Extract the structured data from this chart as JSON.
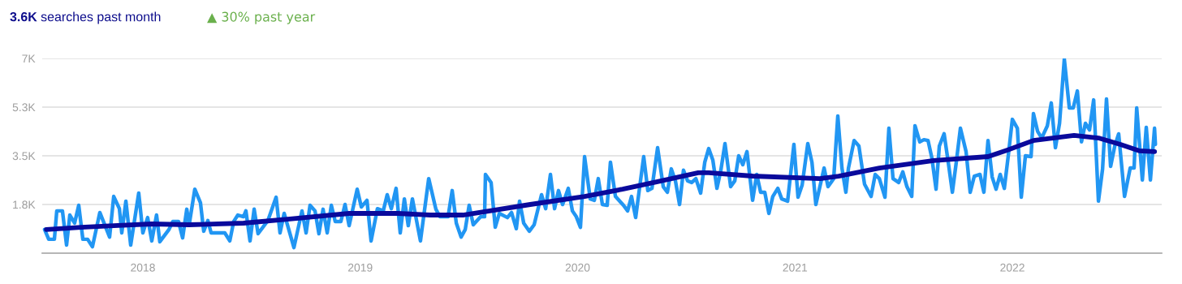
{
  "chart_data": {
    "type": "line",
    "title": "3.6K searches past month",
    "subtitle": "▲ 30% past year",
    "xlim": [
      2017.537,
      2022.687
    ],
    "xticks": [
      2018,
      2019,
      2020,
      2021,
      2022
    ],
    "ylim": [
      0,
      7000
    ],
    "yticks": [
      {
        "value": 1750,
        "label": "1.8K"
      },
      {
        "value": 3500,
        "label": "3.5K"
      },
      {
        "value": 5250,
        "label": "5.3K"
      },
      {
        "value": 7000,
        "label": "7K"
      }
    ],
    "grid": "y",
    "legend": false,
    "marker": "none",
    "line_style": "solid",
    "series": [
      {
        "color": "#2196f3",
        "x": [
          2017.548,
          2017.567,
          2017.593,
          2017.604,
          2017.63,
          2017.649,
          2017.664,
          2017.686,
          2017.705,
          2017.724,
          2017.746,
          2017.768,
          2017.802,
          2017.847,
          2017.866,
          2017.892,
          2017.903,
          2017.922,
          2017.944,
          2017.981,
          2018.0,
          2018.022,
          2018.041,
          2018.063,
          2018.078,
          2018.12,
          2018.138,
          2018.164,
          2018.183,
          2018.202,
          2018.213,
          2018.239,
          2018.265,
          2018.28,
          2018.299,
          2018.314,
          2018.377,
          2018.4,
          2018.418,
          2018.437,
          2018.463,
          2018.474,
          2018.493,
          2018.512,
          2018.53,
          2018.575,
          2018.613,
          2018.631,
          2018.65,
          2018.695,
          2018.732,
          2018.751,
          2018.769,
          2018.792,
          2018.81,
          2018.829,
          2018.848,
          2018.867,
          2018.885,
          2018.911,
          2018.93,
          2018.949,
          2018.986,
          2019.005,
          2019.031,
          2019.05,
          2019.079,
          2019.106,
          2019.124,
          2019.143,
          2019.165,
          2019.184,
          2019.203,
          2019.221,
          2019.24,
          2019.277,
          2019.315,
          2019.348,
          2019.367,
          2019.404,
          2019.423,
          2019.442,
          2019.464,
          2019.483,
          2019.501,
          2019.52,
          2019.554,
          2019.572,
          2019.576,
          2019.602,
          2019.621,
          2019.64,
          2019.677,
          2019.696,
          2019.718,
          2019.733,
          2019.752,
          2019.778,
          2019.8,
          2019.834,
          2019.853,
          2019.875,
          2019.894,
          2019.912,
          2019.931,
          2019.957,
          2019.976,
          2019.994,
          2020.013,
          2020.032,
          2020.058,
          2020.077,
          2020.095,
          2020.114,
          2020.136,
          2020.151,
          2020.174,
          2020.211,
          2020.23,
          2020.248,
          2020.267,
          2020.304,
          2020.323,
          2020.342,
          2020.368,
          2020.394,
          2020.413,
          2020.431,
          2020.45,
          2020.469,
          2020.487,
          2020.506,
          2020.525,
          2020.544,
          2020.566,
          2020.585,
          2020.603,
          2020.622,
          2020.641,
          2020.659,
          2020.678,
          2020.704,
          2020.723,
          2020.741,
          2020.76,
          2020.779,
          2020.805,
          2020.824,
          2020.842,
          2020.861,
          2020.88,
          2020.898,
          2020.921,
          2020.939,
          2020.966,
          2020.995,
          2021.014,
          2021.033,
          2021.059,
          2021.078,
          2021.096,
          2021.134,
          2021.152,
          2021.178,
          2021.197,
          2021.216,
          2021.234,
          2021.246,
          2021.272,
          2021.294,
          2021.32,
          2021.35,
          2021.369,
          2021.388,
          2021.414,
          2021.432,
          2021.451,
          2021.477,
          2021.496,
          2021.515,
          2021.537,
          2021.552,
          2021.574,
          2021.593,
          2021.612,
          2021.63,
          2021.649,
          2021.664,
          2021.686,
          2021.705,
          2021.724,
          2021.742,
          2021.761,
          2021.787,
          2021.806,
          2021.825,
          2021.851,
          2021.869,
          2021.888,
          2021.907,
          2021.925,
          2021.944,
          2021.963,
          2021.982,
          2022.0,
          2022.023,
          2022.041,
          2022.06,
          2022.086,
          2022.097,
          2022.116,
          2022.135,
          2022.161,
          2022.179,
          2022.198,
          2022.217,
          2022.239,
          2022.262,
          2022.28,
          2022.299,
          2022.318,
          2022.336,
          2022.355,
          2022.374,
          2022.396,
          2022.415,
          2022.433,
          2022.452,
          2022.471,
          2022.489,
          2022.516,
          2022.542,
          2022.56,
          2022.572,
          2022.598,
          2022.616,
          2022.635,
          2022.654,
          2022.658
        ],
        "values": [
          850,
          500,
          500,
          1520,
          1520,
          290,
          1370,
          1080,
          1720,
          500,
          500,
          230,
          1460,
          580,
          2040,
          1600,
          730,
          1870,
          290,
          2160,
          730,
          1280,
          440,
          1370,
          410,
          850,
          1140,
          1140,
          550,
          1580,
          1020,
          2300,
          1810,
          790,
          1170,
          730,
          730,
          440,
          1140,
          1370,
          1310,
          1520,
          440,
          1580,
          700,
          1170,
          2010,
          730,
          1430,
          200,
          1520,
          730,
          1720,
          1520,
          700,
          1580,
          730,
          1720,
          1140,
          1140,
          1750,
          990,
          2300,
          1660,
          1900,
          440,
          1600,
          1520,
          2100,
          1600,
          2330,
          730,
          1950,
          990,
          1950,
          440,
          2680,
          1580,
          1310,
          1310,
          2250,
          1080,
          580,
          850,
          1720,
          1020,
          1310,
          1310,
          2830,
          2540,
          930,
          1430,
          1280,
          1460,
          880,
          1870,
          1080,
          790,
          1020,
          2100,
          1600,
          2830,
          1600,
          2250,
          1750,
          2330,
          1520,
          1310,
          930,
          3470,
          1950,
          1900,
          2680,
          1750,
          1720,
          3270,
          2040,
          1720,
          1520,
          2040,
          1280,
          3470,
          2250,
          2330,
          3790,
          2390,
          2190,
          3030,
          2600,
          1750,
          2980,
          2600,
          2540,
          2680,
          2160,
          3270,
          3760,
          3350,
          2330,
          2980,
          3940,
          2390,
          2600,
          3500,
          3180,
          3650,
          1900,
          2830,
          2190,
          2190,
          1430,
          2040,
          2330,
          1950,
          1870,
          3910,
          2010,
          2450,
          3940,
          3270,
          1750,
          3060,
          2390,
          2680,
          4930,
          3060,
          2190,
          3060,
          4050,
          3850,
          2480,
          2040,
          2830,
          2680,
          2010,
          4490,
          2680,
          2540,
          2920,
          2390,
          2040,
          4580,
          4000,
          4080,
          4050,
          3410,
          2300,
          3850,
          4290,
          3270,
          2190,
          3270,
          4490,
          3650,
          2190,
          2770,
          2830,
          2190,
          4050,
          2740,
          2300,
          2830,
          2330,
          3560,
          4810,
          4490,
          2010,
          3500,
          3470,
          5020,
          4380,
          4140,
          4580,
          5400,
          3790,
          4670,
          6970,
          5220,
          5220,
          5830,
          4000,
          4670,
          4430,
          5510,
          1870,
          3030,
          5540,
          3120,
          3850,
          4290,
          2040,
          3060,
          3060,
          5220,
          2630,
          4520,
          2630,
          4490,
          3910
        ]
      },
      {
        "color": "#0a0a9c",
        "x": [
          2017.556,
          2017.716,
          2017.866,
          2018.041,
          2018.213,
          2018.463,
          2018.676,
          2018.949,
          2019.173,
          2019.322,
          2019.472,
          2019.782,
          2020.032,
          2020.207,
          2020.368,
          2020.555,
          2020.603,
          2020.805,
          2021.115,
          2021.201,
          2021.388,
          2021.638,
          2021.888,
          2021.974,
          2022.097,
          2022.284,
          2022.396,
          2022.497,
          2022.583,
          2022.654
        ],
        "values": [
          850,
          930,
          990,
          1050,
          1020,
          1080,
          1230,
          1430,
          1430,
          1370,
          1370,
          1750,
          2040,
          2300,
          2570,
          2890,
          2890,
          2770,
          2680,
          2770,
          3060,
          3330,
          3470,
          3700,
          4050,
          4230,
          4140,
          3910,
          3680,
          3650
        ]
      }
    ]
  }
}
